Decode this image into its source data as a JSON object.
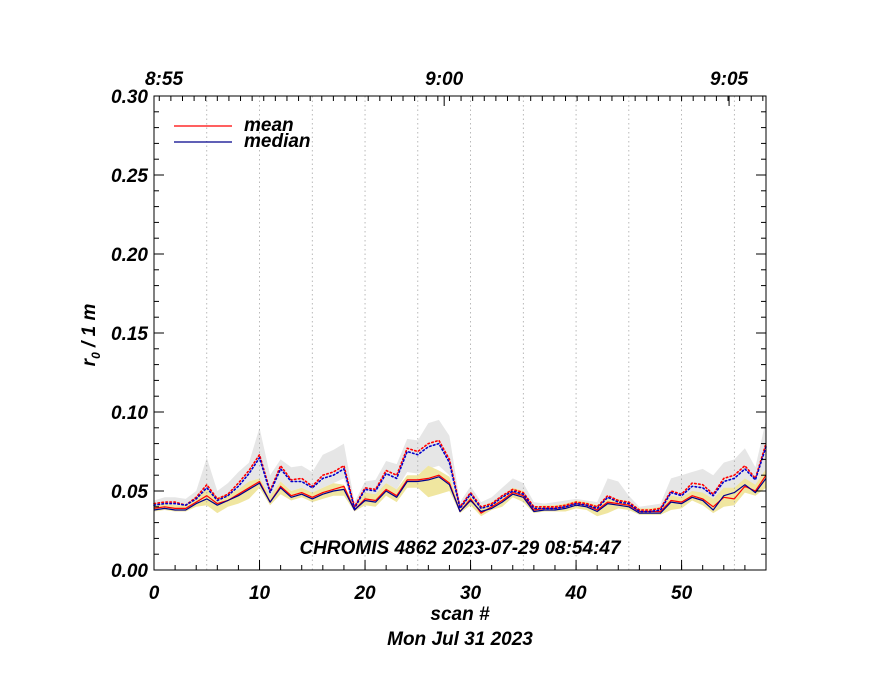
{
  "chart_data": {
    "type": "line",
    "title": "CHROMIS 4862 2023-07-29 08:54:47",
    "xlabel": "scan #",
    "date_label": "Mon Jul 31 2023",
    "ylabel": "r",
    "ylabel_sub": "0",
    "ylabel_unit": " / 1 m",
    "xlim": [
      0,
      58
    ],
    "ylim": [
      0,
      0.3
    ],
    "x_ticks": [
      0,
      10,
      20,
      30,
      40,
      50
    ],
    "x_tick_labels": [
      "0",
      "10",
      "20",
      "30",
      "40",
      "50"
    ],
    "y_ticks": [
      0,
      0.05,
      0.1,
      0.15,
      0.2,
      0.25,
      0.3
    ],
    "y_tick_labels": [
      "0.00",
      "0.05",
      "0.10",
      "0.15",
      "0.20",
      "0.25",
      "0.30"
    ],
    "top_axis": [
      {
        "label": "8:55",
        "x": 0
      },
      {
        "label": "9:00",
        "x": 27.5
      },
      {
        "label": "9:05",
        "x": 54.5
      }
    ],
    "grid_x": [
      5,
      10,
      15,
      20,
      25,
      30,
      35,
      40,
      45,
      50,
      55
    ],
    "legend": [
      {
        "name": "mean",
        "color": "#ff0000"
      },
      {
        "name": "median",
        "color": "#00008b"
      }
    ],
    "legend_position": "top-left",
    "x": [
      0,
      1,
      2,
      3,
      4,
      5,
      6,
      7,
      8,
      9,
      10,
      11,
      12,
      13,
      14,
      15,
      16,
      17,
      18,
      19,
      20,
      21,
      22,
      23,
      24,
      25,
      26,
      27,
      28,
      29,
      30,
      31,
      32,
      33,
      34,
      35,
      36,
      37,
      38,
      39,
      40,
      41,
      42,
      43,
      44,
      45,
      46,
      47,
      48,
      49,
      50,
      51,
      52,
      53,
      54,
      55,
      56,
      57,
      58
    ],
    "series": [
      {
        "name": "mean",
        "color": "#ff0000",
        "style": "solid",
        "values": [
          0.039,
          0.04,
          0.039,
          0.039,
          0.043,
          0.047,
          0.042,
          0.044,
          0.048,
          0.052,
          0.056,
          0.043,
          0.053,
          0.047,
          0.049,
          0.046,
          0.049,
          0.051,
          0.053,
          0.038,
          0.045,
          0.044,
          0.051,
          0.047,
          0.057,
          0.057,
          0.058,
          0.06,
          0.055,
          0.037,
          0.045,
          0.036,
          0.04,
          0.044,
          0.049,
          0.047,
          0.038,
          0.039,
          0.039,
          0.04,
          0.042,
          0.041,
          0.038,
          0.043,
          0.042,
          0.041,
          0.037,
          0.037,
          0.037,
          0.044,
          0.043,
          0.047,
          0.045,
          0.04,
          0.046,
          0.045,
          0.053,
          0.05,
          0.06
        ]
      },
      {
        "name": "median",
        "color": "#00008b",
        "style": "solid",
        "values": [
          0.038,
          0.039,
          0.038,
          0.038,
          0.042,
          0.045,
          0.041,
          0.044,
          0.047,
          0.051,
          0.055,
          0.043,
          0.052,
          0.046,
          0.048,
          0.045,
          0.048,
          0.05,
          0.051,
          0.038,
          0.044,
          0.043,
          0.05,
          0.046,
          0.056,
          0.056,
          0.057,
          0.059,
          0.054,
          0.037,
          0.044,
          0.037,
          0.039,
          0.043,
          0.048,
          0.046,
          0.037,
          0.038,
          0.038,
          0.039,
          0.041,
          0.04,
          0.037,
          0.042,
          0.041,
          0.04,
          0.036,
          0.036,
          0.036,
          0.043,
          0.042,
          0.046,
          0.044,
          0.038,
          0.047,
          0.049,
          0.054,
          0.049,
          0.058
        ]
      },
      {
        "name": "mean (upper)",
        "color": "#ff0000",
        "style": "dotted",
        "values": [
          0.042,
          0.043,
          0.043,
          0.041,
          0.046,
          0.054,
          0.045,
          0.048,
          0.055,
          0.063,
          0.073,
          0.05,
          0.066,
          0.057,
          0.058,
          0.053,
          0.06,
          0.062,
          0.066,
          0.04,
          0.052,
          0.051,
          0.063,
          0.06,
          0.077,
          0.075,
          0.08,
          0.082,
          0.07,
          0.04,
          0.049,
          0.04,
          0.042,
          0.047,
          0.051,
          0.049,
          0.04,
          0.04,
          0.04,
          0.041,
          0.043,
          0.042,
          0.04,
          0.047,
          0.044,
          0.043,
          0.038,
          0.038,
          0.039,
          0.05,
          0.048,
          0.055,
          0.054,
          0.048,
          0.058,
          0.06,
          0.066,
          0.058,
          0.08
        ]
      },
      {
        "name": "median (upper)",
        "color": "#0000cd",
        "style": "dotted",
        "values": [
          0.041,
          0.042,
          0.042,
          0.041,
          0.045,
          0.052,
          0.044,
          0.047,
          0.053,
          0.061,
          0.071,
          0.049,
          0.064,
          0.056,
          0.056,
          0.052,
          0.058,
          0.06,
          0.064,
          0.039,
          0.051,
          0.05,
          0.061,
          0.058,
          0.075,
          0.073,
          0.078,
          0.08,
          0.068,
          0.039,
          0.048,
          0.039,
          0.041,
          0.046,
          0.05,
          0.048,
          0.039,
          0.039,
          0.039,
          0.04,
          0.042,
          0.041,
          0.039,
          0.046,
          0.043,
          0.042,
          0.037,
          0.037,
          0.038,
          0.049,
          0.047,
          0.053,
          0.052,
          0.047,
          0.056,
          0.058,
          0.064,
          0.057,
          0.078
        ]
      }
    ],
    "band_gray": {
      "color": "#e6e6e6",
      "low": [
        0.04,
        0.041,
        0.041,
        0.04,
        0.044,
        0.048,
        0.043,
        0.046,
        0.05,
        0.056,
        0.058,
        0.046,
        0.056,
        0.05,
        0.052,
        0.049,
        0.052,
        0.055,
        0.058,
        0.039,
        0.048,
        0.047,
        0.055,
        0.051,
        0.062,
        0.061,
        0.064,
        0.066,
        0.06,
        0.038,
        0.046,
        0.038,
        0.04,
        0.044,
        0.049,
        0.046,
        0.038,
        0.039,
        0.039,
        0.039,
        0.041,
        0.04,
        0.038,
        0.044,
        0.042,
        0.041,
        0.037,
        0.037,
        0.037,
        0.045,
        0.044,
        0.049,
        0.047,
        0.042,
        0.05,
        0.052,
        0.057,
        0.052,
        0.064
      ],
      "high": [
        0.044,
        0.046,
        0.046,
        0.045,
        0.05,
        0.071,
        0.05,
        0.055,
        0.062,
        0.068,
        0.09,
        0.06,
        0.07,
        0.065,
        0.066,
        0.062,
        0.073,
        0.076,
        0.08,
        0.043,
        0.056,
        0.057,
        0.069,
        0.067,
        0.083,
        0.082,
        0.093,
        0.095,
        0.085,
        0.043,
        0.053,
        0.043,
        0.046,
        0.052,
        0.058,
        0.055,
        0.043,
        0.042,
        0.043,
        0.044,
        0.045,
        0.044,
        0.043,
        0.058,
        0.056,
        0.047,
        0.04,
        0.041,
        0.042,
        0.058,
        0.06,
        0.062,
        0.064,
        0.06,
        0.068,
        0.07,
        0.077,
        0.065,
        0.095
      ]
    },
    "band_yellow": {
      "color": "#f0e6a0",
      "low": [
        0.037,
        0.038,
        0.037,
        0.037,
        0.04,
        0.041,
        0.036,
        0.04,
        0.042,
        0.045,
        0.052,
        0.041,
        0.048,
        0.044,
        0.046,
        0.043,
        0.045,
        0.047,
        0.047,
        0.037,
        0.041,
        0.04,
        0.047,
        0.043,
        0.052,
        0.052,
        0.046,
        0.048,
        0.05,
        0.036,
        0.041,
        0.034,
        0.038,
        0.04,
        0.046,
        0.043,
        0.036,
        0.037,
        0.037,
        0.037,
        0.039,
        0.038,
        0.034,
        0.036,
        0.039,
        0.038,
        0.035,
        0.035,
        0.035,
        0.038,
        0.039,
        0.044,
        0.041,
        0.036,
        0.04,
        0.041,
        0.049,
        0.047,
        0.052
      ],
      "high": [
        0.041,
        0.042,
        0.041,
        0.041,
        0.046,
        0.051,
        0.046,
        0.048,
        0.051,
        0.056,
        0.058,
        0.047,
        0.056,
        0.05,
        0.052,
        0.049,
        0.052,
        0.055,
        0.054,
        0.041,
        0.049,
        0.048,
        0.055,
        0.051,
        0.06,
        0.06,
        0.066,
        0.063,
        0.059,
        0.04,
        0.047,
        0.04,
        0.043,
        0.047,
        0.052,
        0.05,
        0.04,
        0.041,
        0.041,
        0.042,
        0.044,
        0.043,
        0.041,
        0.045,
        0.045,
        0.043,
        0.039,
        0.039,
        0.04,
        0.047,
        0.046,
        0.05,
        0.049,
        0.045,
        0.052,
        0.052,
        0.058,
        0.054,
        0.064
      ]
    }
  }
}
